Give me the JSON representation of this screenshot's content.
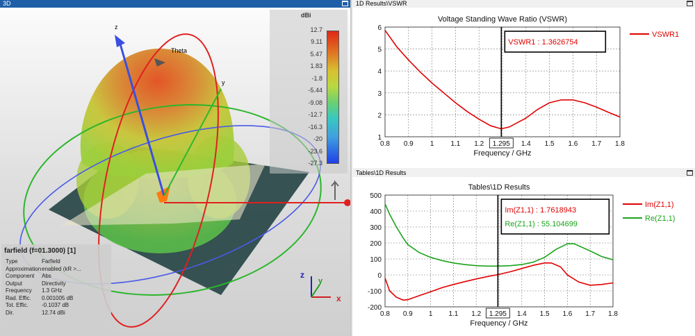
{
  "panels": {
    "p3d": {
      "title": "3D"
    },
    "vswr": {
      "title": "1D Results\\VSWR"
    },
    "tables": {
      "title": "Tables\\1D Results"
    }
  },
  "farfield_view": {
    "scale_unit": "dBi",
    "scale_ticks": [
      "12.7",
      "9.11",
      "5.47",
      "1.83",
      "-1.8",
      "-5.44",
      "-9.08",
      "-12.7",
      "-16.3",
      "-20",
      "-23.6",
      "-27.3"
    ],
    "axis_labels": {
      "z": "z",
      "y": "y",
      "theta": "Theta"
    },
    "triad_labels": {
      "x": "x",
      "y": "y",
      "z": "z"
    },
    "info": {
      "heading": "farfield (f=01.3000) [1]",
      "rows": [
        {
          "key": "Type",
          "value": "Farfield"
        },
        {
          "key": "Approximation",
          "value": "enabled (kR >..."
        },
        {
          "key": "Component",
          "value": "Abs"
        },
        {
          "key": "Output",
          "value": "Directivity"
        },
        {
          "key": "Frequency",
          "value": "1.3 GHz"
        },
        {
          "key": "Rad. Effic.",
          "value": "0.001005 dB"
        },
        {
          "key": "Tot. Effic.",
          "value": "-0.1037 dB"
        },
        {
          "key": "Dir.",
          "value": "12.74 dBi"
        }
      ]
    },
    "colors": {
      "z_axis": "#3a4fe0",
      "y_axis": "#2eb82e",
      "x_axis": "#e02020"
    }
  },
  "chart_data": [
    {
      "type": "line",
      "title": "Voltage Standing Wave Ratio (VSWR)",
      "xlabel": "Frequency / GHz",
      "ylabel": "",
      "xlim": [
        0.8,
        1.8
      ],
      "ylim": [
        1,
        6
      ],
      "xticks": [
        "0.8",
        "0.9",
        "1",
        "1.1",
        "1.2",
        "1.3",
        "1.4",
        "1.5",
        "1.6",
        "1.7",
        "1.8"
      ],
      "yticks": [
        "1",
        "2",
        "3",
        "4",
        "5",
        "6"
      ],
      "grid": true,
      "legend": "right",
      "marker": {
        "x": 1.295,
        "label": "1.295"
      },
      "annotations": [
        {
          "text": "VSWR1 : 1.3626754",
          "color": "#e00000"
        }
      ],
      "series": [
        {
          "name": "VSWR1",
          "color": "#e00000",
          "x": [
            0.8,
            0.85,
            0.9,
            0.95,
            1.0,
            1.05,
            1.1,
            1.15,
            1.2,
            1.25,
            1.295,
            1.33,
            1.4,
            1.45,
            1.5,
            1.55,
            1.6,
            1.65,
            1.7,
            1.75,
            1.8
          ],
          "y": [
            5.85,
            5.1,
            4.5,
            3.95,
            3.45,
            3.0,
            2.55,
            2.15,
            1.8,
            1.5,
            1.36,
            1.45,
            1.85,
            2.25,
            2.55,
            2.68,
            2.68,
            2.55,
            2.35,
            2.12,
            1.9
          ]
        }
      ]
    },
    {
      "type": "line",
      "title": "Tables\\1D Results",
      "xlabel": "Frequency / GHz",
      "ylabel": "",
      "xlim": [
        0.8,
        1.8
      ],
      "ylim": [
        -200,
        500
      ],
      "xticks": [
        "0.8",
        "0.9",
        "1",
        "1.1",
        "1.2",
        "1.3",
        "1.4",
        "1.5",
        "1.6",
        "1.7",
        "1.8"
      ],
      "yticks": [
        "-200",
        "-100",
        "0",
        "100",
        "200",
        "300",
        "400",
        "500"
      ],
      "grid": true,
      "legend": "right",
      "marker": {
        "x": 1.295,
        "label": "1.295"
      },
      "annotations": [
        {
          "text": "Im(Z1,1) : 1.7618943",
          "color": "#e00000"
        },
        {
          "text": "Re(Z1,1) : 55.104699",
          "color": "#1aa31a"
        }
      ],
      "series": [
        {
          "name": "Im(Z1,1)",
          "color": "#e00000",
          "x": [
            0.8,
            0.82,
            0.85,
            0.88,
            0.9,
            0.95,
            1.0,
            1.05,
            1.1,
            1.15,
            1.2,
            1.25,
            1.295,
            1.35,
            1.4,
            1.45,
            1.5,
            1.53,
            1.57,
            1.6,
            1.65,
            1.7,
            1.75,
            1.8
          ],
          "y": [
            -20,
            -100,
            -140,
            -158,
            -155,
            -130,
            -105,
            -80,
            -60,
            -42,
            -25,
            -10,
            1.76,
            20,
            40,
            60,
            75,
            75,
            50,
            0,
            -45,
            -65,
            -60,
            -50
          ]
        },
        {
          "name": "Re(Z1,1)",
          "color": "#1aa31a",
          "x": [
            0.8,
            0.82,
            0.85,
            0.88,
            0.9,
            0.95,
            1.0,
            1.05,
            1.1,
            1.15,
            1.2,
            1.25,
            1.295,
            1.35,
            1.4,
            1.45,
            1.5,
            1.55,
            1.6,
            1.63,
            1.7,
            1.75,
            1.8
          ],
          "y": [
            445,
            380,
            300,
            230,
            190,
            140,
            110,
            90,
            75,
            65,
            58,
            55,
            55.1,
            58,
            65,
            80,
            110,
            160,
            195,
            195,
            150,
            115,
            95
          ]
        }
      ]
    }
  ]
}
